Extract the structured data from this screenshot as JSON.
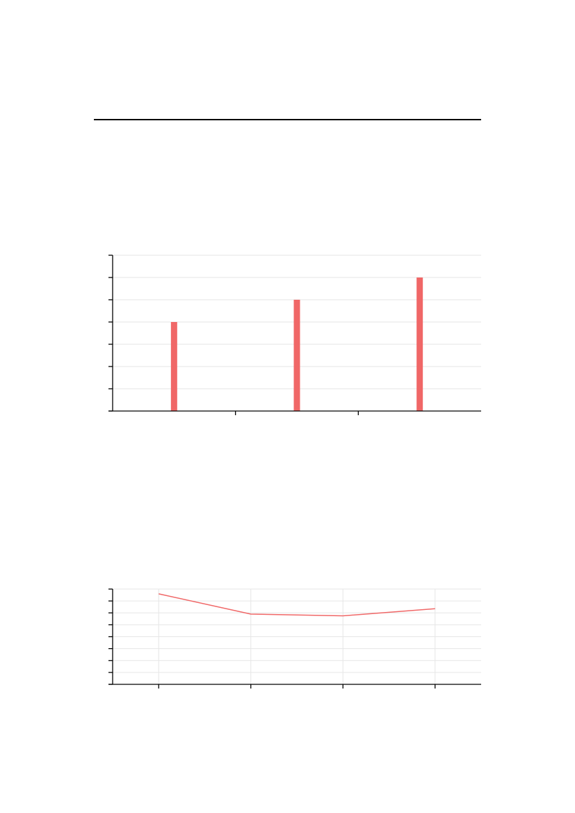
{
  "colors": {
    "series": "#f06767",
    "grid": "#e6e6e6",
    "axis": "#000000"
  },
  "chart_data": [
    {
      "type": "bar",
      "categories": [
        "",
        "",
        ""
      ],
      "values": [
        4,
        5,
        6
      ],
      "ylim": [
        0,
        7
      ],
      "y_ticks": [
        0,
        1,
        2,
        3,
        4,
        5,
        6,
        7
      ],
      "x_minor_ticks": 2,
      "grid": "horizontal",
      "title": "",
      "xlabel": "",
      "ylabel": ""
    },
    {
      "type": "line",
      "x": [
        1,
        2,
        3,
        4
      ],
      "values": [
        7.6,
        5.9,
        5.75,
        6.35
      ],
      "ylim": [
        0,
        8
      ],
      "y_ticks": [
        0,
        1,
        2,
        3,
        4,
        5,
        6,
        7,
        8
      ],
      "grid": "both",
      "title": "",
      "xlabel": "",
      "ylabel": ""
    }
  ]
}
